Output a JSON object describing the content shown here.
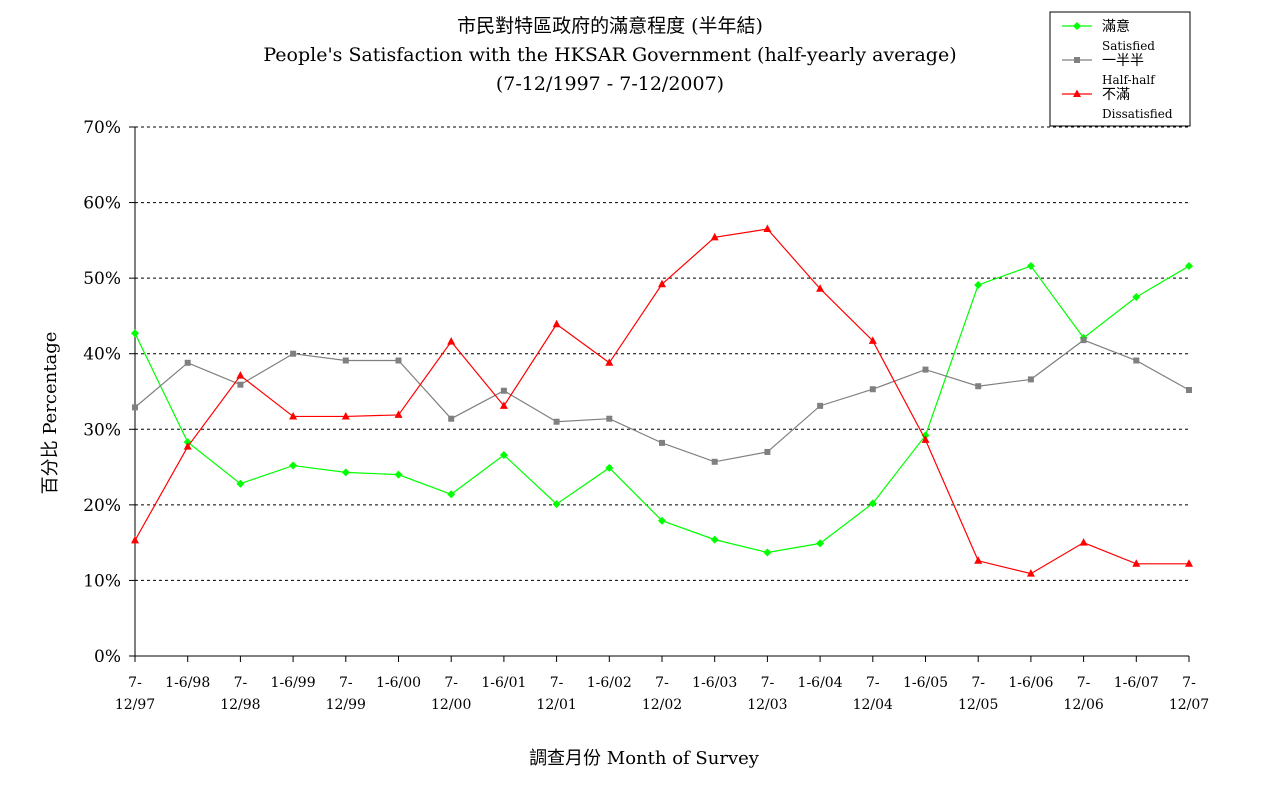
{
  "chart_data": {
    "type": "line",
    "title": "市民對特區政府的滿意程度 (半年結)",
    "subtitle": "People's Satisfaction with the HKSAR Government (half-yearly average)",
    "subtitle2": "(7-12/1997 - 7-12/2007)",
    "xlabel": "調查月份 Month of Survey",
    "ylabel": "百分比 Percentage",
    "ylim": [
      0,
      70
    ],
    "yticks": [
      "0%",
      "10%",
      "20%",
      "30%",
      "40%",
      "50%",
      "60%",
      "70%"
    ],
    "grid": true,
    "legend_position": "top-right",
    "categories": [
      [
        "7-",
        "12/97"
      ],
      [
        "1-6/98",
        ""
      ],
      [
        "7-",
        "12/98"
      ],
      [
        "1-6/99",
        ""
      ],
      [
        "7-",
        "12/99"
      ],
      [
        "1-6/00",
        ""
      ],
      [
        "7-",
        "12/00"
      ],
      [
        "1-6/01",
        ""
      ],
      [
        "7-",
        "12/01"
      ],
      [
        "1-6/02",
        ""
      ],
      [
        "7-",
        "12/02"
      ],
      [
        "1-6/03",
        ""
      ],
      [
        "7-",
        "12/03"
      ],
      [
        "1-6/04",
        ""
      ],
      [
        "7-",
        "12/04"
      ],
      [
        "1-6/05",
        ""
      ],
      [
        "7-",
        "12/05"
      ],
      [
        "1-6/06",
        ""
      ],
      [
        "7-",
        "12/06"
      ],
      [
        "1-6/07",
        ""
      ],
      [
        "7-",
        "12/07"
      ]
    ],
    "series": [
      {
        "name": "滿意",
        "name_en": "Satisfied",
        "color": "#00ff00",
        "marker": "diamond",
        "values": [
          42.7,
          28.3,
          22.8,
          25.2,
          24.3,
          24.0,
          21.4,
          26.6,
          20.1,
          24.9,
          17.9,
          15.4,
          13.7,
          14.9,
          20.2,
          29.2,
          49.1,
          51.6,
          42.1,
          47.5,
          51.6
        ]
      },
      {
        "name": "一半半",
        "name_en": "Half-half",
        "color": "#808080",
        "marker": "square",
        "values": [
          32.9,
          38.8,
          35.9,
          40.0,
          39.1,
          39.1,
          31.4,
          35.1,
          31.0,
          31.4,
          28.2,
          25.7,
          27.0,
          33.1,
          35.3,
          37.9,
          35.7,
          36.6,
          41.8,
          39.1,
          35.2
        ]
      },
      {
        "name": "不滿",
        "name_en": "Dissatisfied",
        "color": "#ff0000",
        "marker": "triangle",
        "values": [
          15.3,
          27.7,
          37.1,
          31.7,
          31.7,
          31.9,
          41.6,
          33.1,
          43.9,
          38.8,
          49.2,
          55.4,
          56.5,
          48.6,
          41.7,
          28.6,
          12.6,
          10.9,
          15.0,
          12.2,
          12.2
        ]
      }
    ]
  }
}
